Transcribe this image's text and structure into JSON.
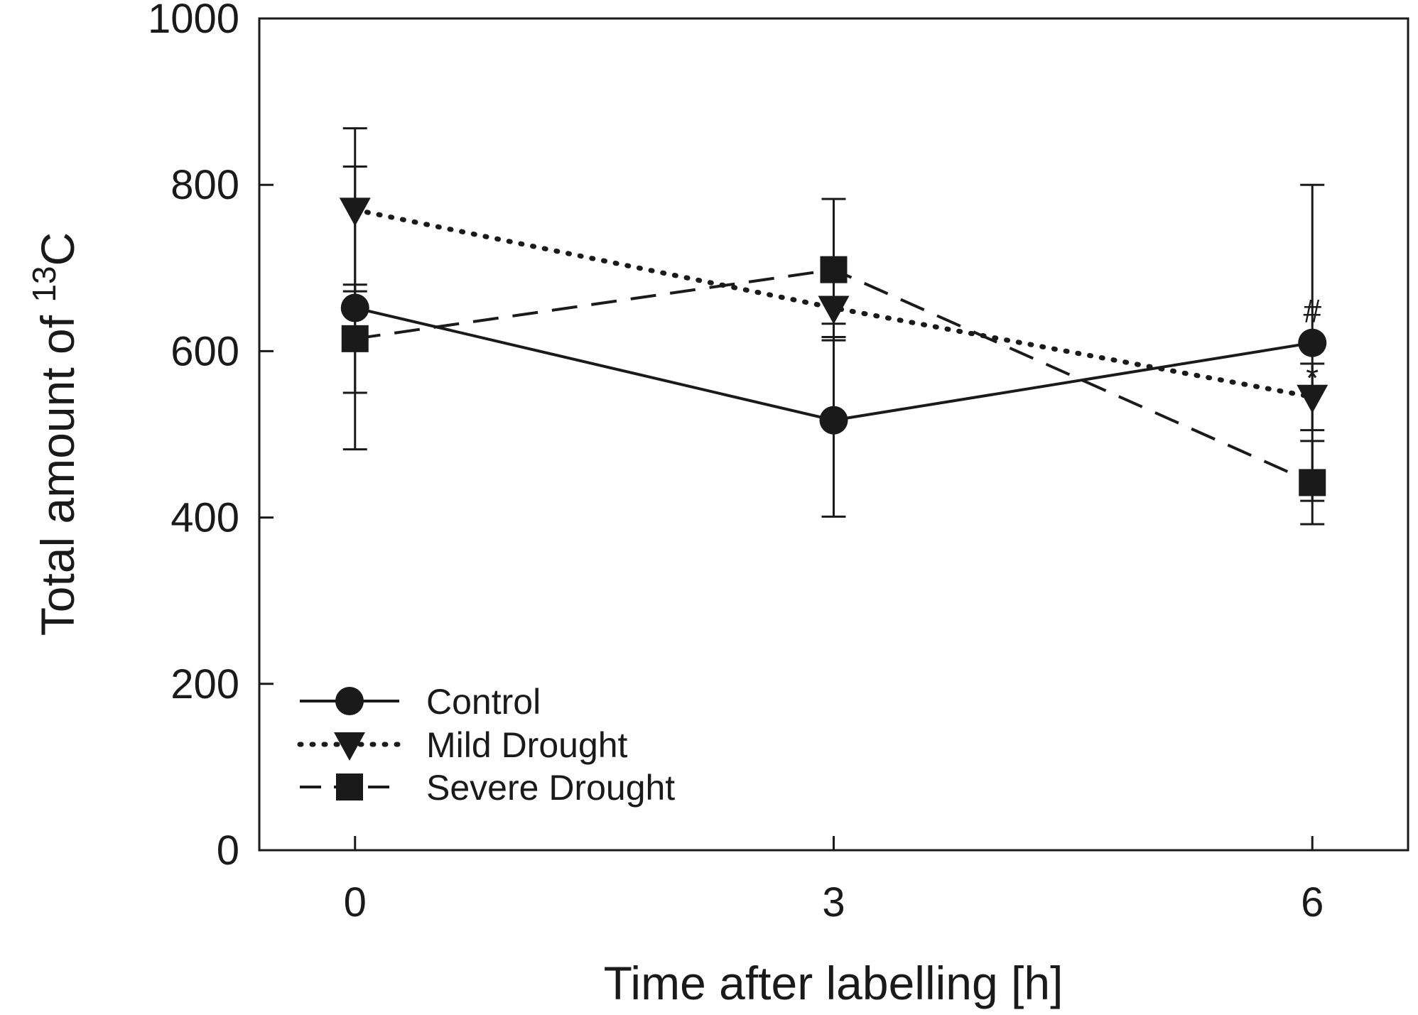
{
  "chart_data": {
    "type": "line",
    "title": "",
    "xlabel": "Time after labelling [h]",
    "ylabel": {
      "prefix": "Total amount of ",
      "superscript": "13",
      "suffix": "C"
    },
    "x": [
      0,
      3,
      6
    ],
    "x_tick_labels": [
      "0",
      "3",
      "6"
    ],
    "xlim": [
      -0.6,
      6.6
    ],
    "ylim": [
      0,
      1000
    ],
    "y_ticks": [
      0,
      200,
      400,
      600,
      800,
      1000
    ],
    "y_tick_labels": [
      "0",
      "200",
      "400",
      "600",
      "800",
      "1000"
    ],
    "grid": false,
    "legend_position": "bottom-left",
    "series": [
      {
        "name": "Control",
        "marker": "circle",
        "line_style": "solid",
        "values": [
          652,
          517,
          610
        ],
        "error": [
          170,
          116,
          190
        ]
      },
      {
        "name": "Mild Drought",
        "marker": "triangle-down",
        "line_style": "dotted",
        "values": [
          770,
          652,
          545
        ],
        "error": [
          98,
          35,
          40
        ]
      },
      {
        "name": "Severe Drought",
        "marker": "square",
        "line_style": "dashed",
        "values": [
          615,
          698,
          442
        ],
        "error": [
          65,
          85,
          50
        ]
      }
    ],
    "annotations": [
      {
        "text": "#",
        "x": 6,
        "y": 648
      },
      {
        "text": "*",
        "x": 6,
        "y": 568
      }
    ],
    "colors": {
      "ink": "#1a1a1a",
      "background": "#ffffff"
    }
  }
}
